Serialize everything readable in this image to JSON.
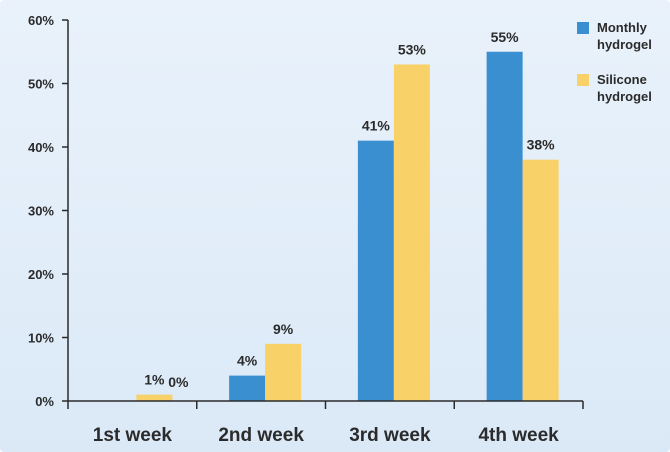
{
  "chart_data": {
    "type": "bar",
    "categories": [
      "1st week",
      "2nd week",
      "3rd week",
      "4th week"
    ],
    "series": [
      {
        "name": "Monthly\nhydrogel",
        "color": "#3a8fd0",
        "values": [
          0,
          4,
          41,
          55
        ],
        "labels": [
          "",
          "4%",
          "41%",
          "55%"
        ]
      },
      {
        "name": "Silicone\nhydrogel",
        "color": "#f8d169",
        "values": [
          1,
          9,
          53,
          38
        ],
        "labels": [
          "1%",
          "9%",
          "53%",
          "38%"
        ]
      }
    ],
    "extra_labels": [
      {
        "category_index": 0,
        "text": "0%"
      }
    ],
    "ylim": [
      0,
      60
    ],
    "yticks": [
      0,
      10,
      20,
      30,
      40,
      50,
      60
    ],
    "ytick_labels": [
      "0%",
      "10%",
      "20%",
      "30%",
      "40%",
      "50%",
      "60%"
    ],
    "title": "",
    "xlabel": "",
    "ylabel": "",
    "grid": false,
    "legend_position": "top-right",
    "axis_color": "#2b2b2b",
    "background_color": "#e3eef9"
  }
}
